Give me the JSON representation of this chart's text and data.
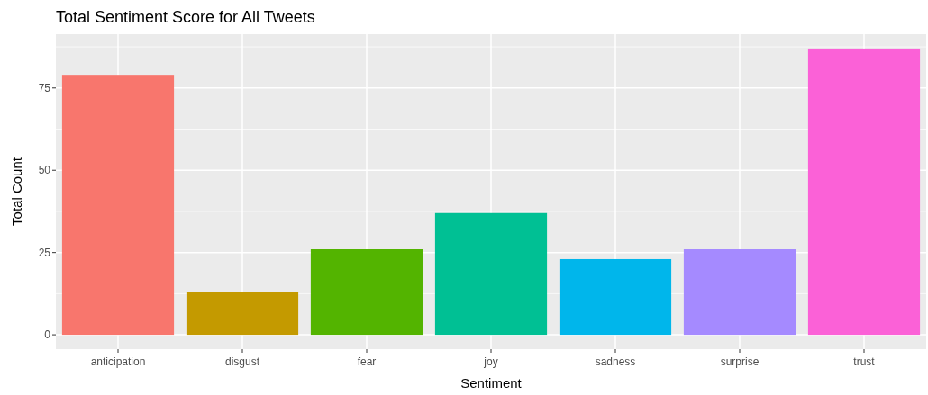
{
  "chart_data": {
    "type": "bar",
    "title": "Total Sentiment Score for All Tweets",
    "xlabel": "Sentiment",
    "ylabel": "Total Count",
    "categories": [
      "anticipation",
      "disgust",
      "fear",
      "joy",
      "sadness",
      "surprise",
      "trust"
    ],
    "values": [
      79,
      13,
      26,
      37,
      23,
      26,
      87
    ],
    "colors": [
      "#f8766d",
      "#c49a00",
      "#53b400",
      "#00c094",
      "#00b6eb",
      "#a58aff",
      "#fb61d7"
    ],
    "ylim": [
      -4.35,
      91.35
    ],
    "yticks": [
      0,
      25,
      50,
      75
    ],
    "grid": true
  }
}
